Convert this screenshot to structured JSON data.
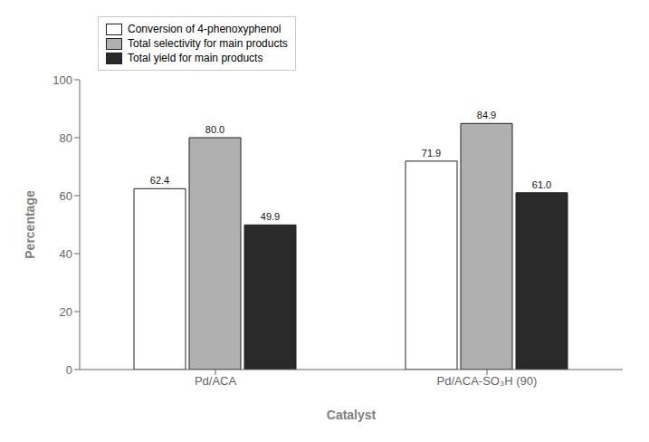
{
  "chart_data": {
    "type": "bar",
    "categories": [
      "Pd/ACA",
      "Pd/ACA-SO₃H (90)"
    ],
    "series": [
      {
        "name": "Conversion of 4-phenoxyphenol",
        "color": "#ffffff",
        "values": [
          62.4,
          71.9
        ],
        "value_labels": [
          "62.4",
          "71.9"
        ]
      },
      {
        "name": "Total selectivity for main products",
        "color": "#b0b0b0",
        "values": [
          80.0,
          84.9
        ],
        "value_labels": [
          "80.0",
          "84.9"
        ]
      },
      {
        "name": "Total yield for main products",
        "color": "#2a2a2a",
        "values": [
          49.9,
          61.0
        ],
        "value_labels": [
          "49.9",
          "61.0"
        ]
      }
    ],
    "xlabel": "Catalyst",
    "ylabel": "Percentage",
    "ylim": [
      0,
      100
    ],
    "yticks": [
      0,
      20,
      40,
      60,
      80,
      100
    ],
    "grid": false,
    "legend": "upper left",
    "data_labels": true
  }
}
